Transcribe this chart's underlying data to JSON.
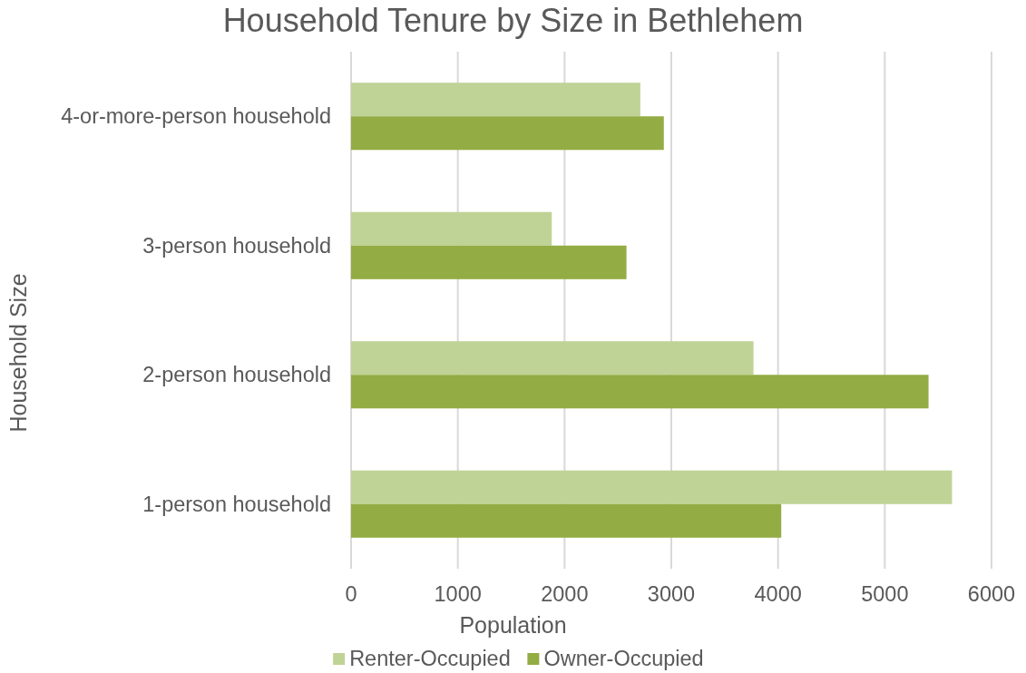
{
  "chart_data": {
    "type": "bar",
    "orientation": "horizontal",
    "title": "Household Tenure by Size in Bethlehem",
    "xlabel": "Population",
    "ylabel": "Household Size",
    "categories": [
      "4-or-more-person household",
      "3-person household",
      "2-person household",
      "1-person household"
    ],
    "series": [
      {
        "name": "Renter-Occupied",
        "color": "#c0d396",
        "values": [
          2710,
          1880,
          3770,
          5630
        ]
      },
      {
        "name": "Owner-Occupied",
        "color": "#93ac43",
        "values": [
          2930,
          2580,
          5410,
          4030
        ]
      }
    ],
    "xlim": [
      0,
      6000
    ],
    "xticks": [
      0,
      1000,
      2000,
      3000,
      4000,
      5000,
      6000
    ],
    "grid": "x",
    "legend": "bottom"
  }
}
